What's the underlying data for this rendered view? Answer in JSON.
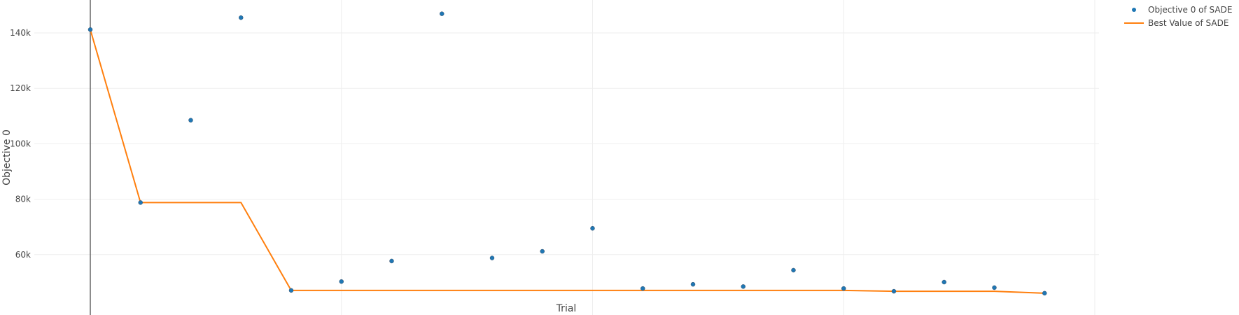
{
  "chart_data": {
    "type": "scatter",
    "xlabel": "Trial",
    "ylabel": "Objective 0",
    "xlim": [
      -1.1,
      20.1
    ],
    "ylim": [
      43000,
      156500
    ],
    "x_gridlines": [
      5,
      10,
      15,
      20
    ],
    "y_ticks": [
      60000,
      80000,
      100000,
      120000,
      140000
    ],
    "y_tick_labels": [
      "60k",
      "80k",
      "100k",
      "120k",
      "140k"
    ],
    "grid": true,
    "legend_position": "top-right",
    "colors": {
      "points": "#1f77b4",
      "line": "#ff7f0e",
      "grid": "#eeeeee",
      "zero_line": "#666666"
    },
    "series": [
      {
        "name": "Objective 0 of SADE",
        "mode": "markers",
        "x": [
          0,
          1,
          2,
          3,
          4,
          5,
          6,
          7,
          8,
          9,
          10,
          11,
          12,
          13,
          14,
          15,
          16,
          17,
          18,
          19
        ],
        "y": [
          141200,
          78800,
          108500,
          145500,
          47100,
          50300,
          57700,
          146900,
          58800,
          61200,
          69500,
          47800,
          49300,
          48500,
          54400,
          47800,
          46800,
          50100,
          48100,
          46100
        ]
      },
      {
        "name": "Best Value of SADE",
        "mode": "lines",
        "x": [
          0,
          1,
          2,
          3,
          4,
          5,
          6,
          7,
          8,
          9,
          10,
          11,
          12,
          13,
          14,
          15,
          16,
          17,
          18,
          19
        ],
        "y": [
          141200,
          78800,
          78800,
          78800,
          47100,
          47100,
          47100,
          47100,
          47100,
          47100,
          47100,
          47100,
          47100,
          47100,
          47100,
          47100,
          46800,
          46800,
          46800,
          46100
        ]
      }
    ]
  }
}
